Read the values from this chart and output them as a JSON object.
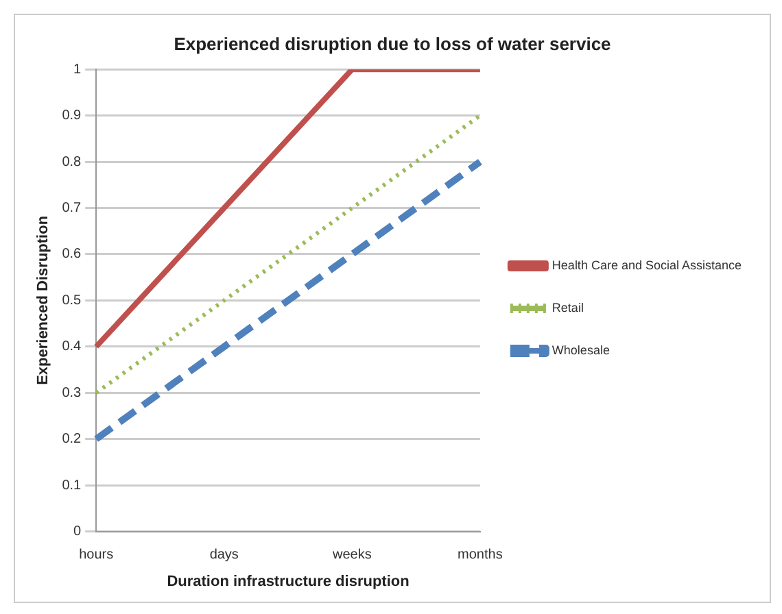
{
  "chart_data": {
    "type": "line",
    "title": "Experienced disruption due to loss of water service",
    "xlabel": "Duration infrastructure disruption",
    "ylabel": "Experienced Disruption",
    "categories": [
      "hours",
      "days",
      "weeks",
      "months"
    ],
    "series": [
      {
        "name": "Health Care and Social Assistance",
        "color": "#c0504d",
        "values": [
          0.4,
          0.7,
          1,
          1
        ],
        "line_style": "solid"
      },
      {
        "name": "Retail",
        "color": "#9bbb59",
        "values": [
          0.3,
          0.5,
          0.7,
          0.9
        ],
        "line_style": "dotted"
      },
      {
        "name": "Wholesale",
        "color": "#4f81bd",
        "values": [
          0.2,
          0.4,
          0.6,
          0.8
        ],
        "line_style": "dashed"
      }
    ],
    "ylim": [
      0,
      1
    ],
    "yticks": [
      0,
      0.1,
      0.2,
      0.3,
      0.4,
      0.5,
      0.6,
      0.7,
      0.8,
      0.9,
      1
    ],
    "grid": "y",
    "legend": "right",
    "marker": "none"
  }
}
